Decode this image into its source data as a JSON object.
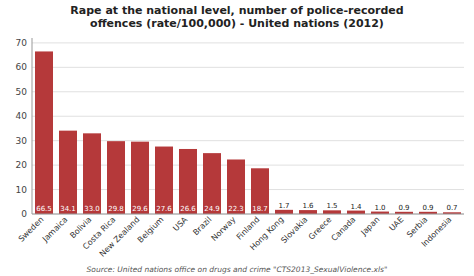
{
  "chart_data": {
    "type": "bar",
    "title": "Rape at the national level, number of police-recorded\noffences (rate/100,000) - United nations (2012)",
    "categories": [
      "Sweden",
      "Jamaica",
      "Bolivia",
      "Costa Rica",
      "New Zealand",
      "Belgium",
      "USA",
      "Brazil",
      "Norway",
      "Finland",
      "Hong Kong",
      "Slovakia",
      "Greece",
      "Canada",
      "Japan",
      "UAE",
      "Serbia",
      "Indonesia"
    ],
    "values": [
      66.5,
      34.1,
      33.0,
      29.8,
      29.6,
      27.6,
      26.6,
      24.9,
      22.3,
      18.7,
      1.7,
      1.6,
      1.5,
      1.4,
      1.0,
      0.9,
      0.9,
      0.7
    ],
    "value_labels": [
      "66.5",
      "34.1",
      "33.0",
      "29.8",
      "29.6",
      "27.6",
      "26.6",
      "24.9",
      "22.3",
      "18.7",
      "1.7",
      "1.6",
      "1.5",
      "1.4",
      "1.0",
      "0.9",
      "0.9",
      "0.7"
    ],
    "data_labels": true,
    "color": "#b5393a",
    "ylim": [
      0,
      72
    ],
    "yticks": [
      0,
      10,
      20,
      30,
      40,
      50,
      60,
      70
    ],
    "grid": true,
    "annotations": [
      "Source: United nations office on drugs and crime \"CTS2013_SexualViolence.xls\""
    ]
  }
}
